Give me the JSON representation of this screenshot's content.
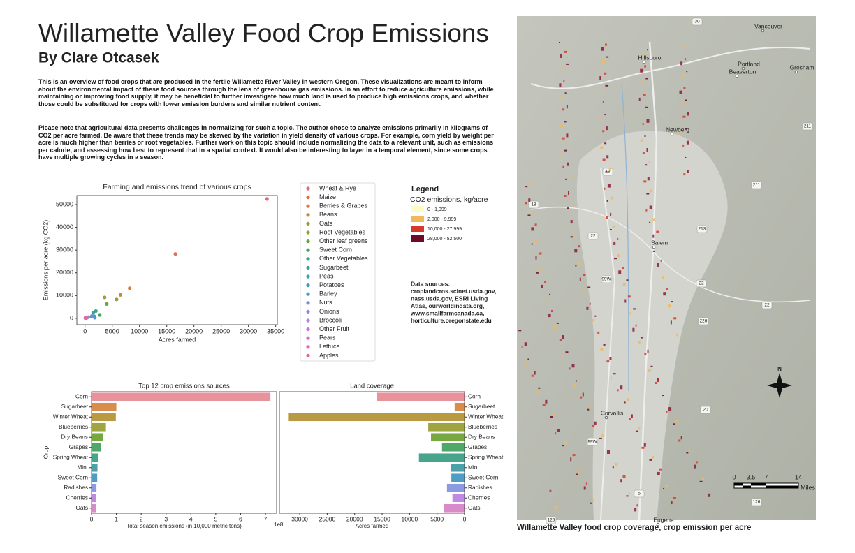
{
  "title": "Willamette Valley Food Crop Emissions",
  "subtitle": "By Clare Otcasek",
  "paragraphs": [
    "This is an overview of food crops that are produced in the fertile Willamette River Valley in western Oregon. These visualizations are meant to inform about the environmental impact of these food sources through the lens of greenhouse gas emissions.  In an effort to reduce agriculture emissions, while maintaining or improving food supply, it may be beneficial to further investigate how much land is used to produce high emissions crops, and whether those could be substituted for crops with lower emission burdens and similar nutrient content.",
    "Please note that agricultural data presents challenges in normalizing for such a topic.  The author chose to analyze emissions primarily in kilograms of CO2 per acre farmed.  Be aware that these trends may be skewed by the variation in yield density of various crops.  For example, corn yield by weight per acre is much higher than berries or root vegetables. Further work on this topic should include normalizing the data to a relevant unit, such as emissions per calorie, and assessing how best to represent that in a spatial context. It would also be interesting to layer in a temporal element, since some crops have multiple growing cycles in a season."
  ],
  "chart_data": [
    {
      "type": "scatter",
      "title": "Farming and emissions trend of various crops",
      "x_label": "Acres farmed",
      "y_label": "Emissions per acre (kg CO2)",
      "xlim": [
        -1500,
        35300
      ],
      "xticks": [
        0,
        5000,
        10000,
        15000,
        20000,
        25000,
        30000,
        35000
      ],
      "ylim": [
        -2800,
        54000
      ],
      "yticks": [
        0,
        10000,
        20000,
        30000,
        40000,
        50000
      ],
      "series": [
        {
          "name": "Wheat & Rye",
          "color": "#e2677a",
          "x": [
            33400
          ],
          "values": [
            52500
          ]
        },
        {
          "name": "Maize",
          "color": "#e06e50",
          "x": [
            16600
          ],
          "values": [
            28300
          ]
        },
        {
          "name": "Berries & Grapes",
          "color": "#d57d3e",
          "x": [
            8200
          ],
          "values": [
            13200
          ]
        },
        {
          "name": "Beans",
          "color": "#bf8c38",
          "x": [
            6500
          ],
          "values": [
            10300
          ]
        },
        {
          "name": "Oats",
          "color": "#a99838",
          "x": [
            3600
          ],
          "values": [
            9200
          ]
        },
        {
          "name": "Root Vegetables",
          "color": "#91a03a",
          "x": [
            5800
          ],
          "values": [
            8300
          ]
        },
        {
          "name": "Other leaf greens",
          "color": "#6fa63a",
          "x": [
            4000
          ],
          "values": [
            6300
          ]
        },
        {
          "name": "Sweet Corn",
          "color": "#3fa657",
          "x": [
            2700
          ],
          "values": [
            1500
          ]
        },
        {
          "name": "Other Vegetables",
          "color": "#3ca47e",
          "x": [
            2000
          ],
          "values": [
            3200
          ]
        },
        {
          "name": "Sugarbeet",
          "color": "#3da296",
          "x": [
            1500
          ],
          "values": [
            2500
          ]
        },
        {
          "name": "Peas",
          "color": "#3ea0a8",
          "x": [
            1200
          ],
          "values": [
            800
          ]
        },
        {
          "name": "Potatoes",
          "color": "#409dba",
          "x": [
            1700
          ],
          "values": [
            900
          ]
        },
        {
          "name": "Barley",
          "color": "#4b98cf",
          "x": [
            1800
          ],
          "values": [
            300
          ]
        },
        {
          "name": "Nuts",
          "color": "#6e8fe0",
          "x": [
            1300
          ],
          "values": [
            1100
          ]
        },
        {
          "name": "Onions",
          "color": "#9587e2",
          "x": [
            600
          ],
          "values": [
            500
          ]
        },
        {
          "name": "Broccoli",
          "color": "#b37fe0",
          "x": [
            300
          ],
          "values": [
            200
          ]
        },
        {
          "name": "Other Fruit",
          "color": "#cc74d8",
          "x": [
            200
          ],
          "values": [
            100
          ]
        },
        {
          "name": "Pears",
          "color": "#dd6cc4",
          "x": [
            100
          ],
          "values": [
            300
          ]
        },
        {
          "name": "Lettuce",
          "color": "#e268ae",
          "x": [
            50
          ],
          "values": [
            100
          ]
        },
        {
          "name": "Apples",
          "color": "#e36896",
          "x": [
            150
          ],
          "values": [
            0
          ]
        }
      ]
    },
    {
      "type": "hbar",
      "title": "Top 12 crop emissions sources",
      "x_label": "Total season emissions (in 10,000 metric tons)",
      "y_label": "Crop",
      "x_offset": "1e8",
      "categories": [
        "Corn",
        "Sugarbeet",
        "Winter Wheat",
        "Blueberries",
        "Dry Beans",
        "Grapes",
        "Spring Wheat",
        "Mint",
        "Sweet Corn",
        "Radishes",
        "Cherries",
        "Oats"
      ],
      "values": [
        720000000,
        100000000,
        98000000,
        58000000,
        45000000,
        37000000,
        28000000,
        24000000,
        23000000,
        20000000,
        19000000,
        17000000
      ],
      "colors": [
        "#e8929c",
        "#d88d4c",
        "#b89a42",
        "#9ea440",
        "#77a840",
        "#4fa86a",
        "#46a58a",
        "#4aa1a8",
        "#4f9cc6",
        "#8c9ae2",
        "#c08ae2",
        "#d98ac8"
      ],
      "xlim": [
        0,
        745000000
      ],
      "xticks": [
        0,
        {
          "value": 100000000,
          "label": "1"
        },
        {
          "value": 200000000,
          "label": "2"
        },
        {
          "value": 300000000,
          "label": "3"
        },
        {
          "value": 400000000,
          "label": "4"
        },
        {
          "value": 500000000,
          "label": "5"
        },
        {
          "value": 600000000,
          "label": "6"
        },
        {
          "value": 700000000,
          "label": "7"
        }
      ]
    },
    {
      "type": "hbar",
      "title": "Land coverage",
      "x_label": "Acres farmed",
      "x_inverted": true,
      "categories": [
        "Corn",
        "Sugarbeet",
        "Winter Wheat",
        "Blueberries",
        "Dry Beans",
        "Grapes",
        "Spring Wheat",
        "Mint",
        "Sweet Corn",
        "Radishes",
        "Cherries",
        "Oats"
      ],
      "values": [
        16000,
        1800,
        32000,
        6600,
        6100,
        4100,
        8300,
        2500,
        2400,
        3200,
        2200,
        3700
      ],
      "colors": [
        "#e8929c",
        "#d88d4c",
        "#b89a42",
        "#9ea440",
        "#77a840",
        "#4fa86a",
        "#46a58a",
        "#4aa1a8",
        "#4f9cc6",
        "#8c9ae2",
        "#c08ae2",
        "#d98ac8"
      ],
      "xlim": [
        0,
        33700
      ],
      "xticks": [
        0,
        5000,
        10000,
        15000,
        20000,
        25000,
        30000
      ]
    }
  ],
  "map_legend": {
    "title": "Legend",
    "subtitle": "CO2 emissions, kg/acre",
    "items": [
      {
        "label": "0 - 1,999",
        "color": "#fffbc4"
      },
      {
        "label": "2,000 - 9,999",
        "color": "#f0b95a"
      },
      {
        "label": "10,000 - 27,999",
        "color": "#d73a2a"
      },
      {
        "label": "28,000 - 52,500",
        "color": "#6b0a2a"
      }
    ]
  },
  "sources": [
    "Data sources:",
    "croplandcros.scinet.usda.gov,",
    "nass.usda.gov, ESRI Living",
    "Atlas, ourworldindata.org,",
    "www.smallfarmcanada.ca,",
    "horticulture.oregonstate.edu"
  ],
  "map": {
    "places": [
      "Vancouver",
      "Portland",
      "Hillsboro",
      "Beaverton",
      "Gresham",
      "Newberg",
      "Salem",
      "Corvallis",
      "Eugene"
    ],
    "roads": [
      "30",
      "211",
      "18",
      "18",
      "211",
      "213",
      "22",
      "99W",
      "22",
      "22",
      "226",
      "20",
      "99W",
      "5",
      "126",
      "126"
    ],
    "north": "N",
    "scale_labels": [
      "0",
      "3.5",
      "7",
      "14"
    ],
    "scale_unit": "Miles",
    "caption": "Willamette Valley food crop coverage, crop emission per acre"
  }
}
